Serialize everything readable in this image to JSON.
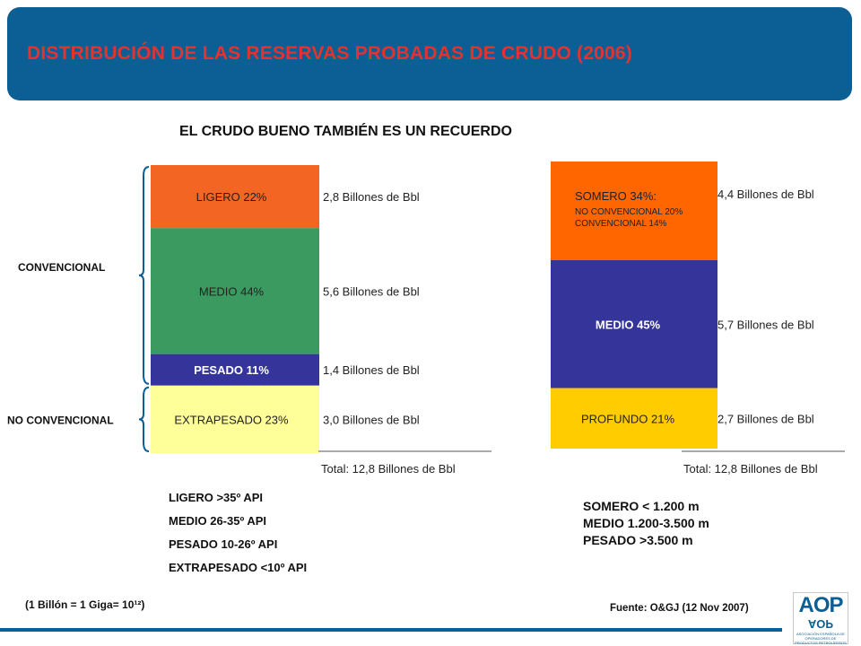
{
  "header": {
    "title": "DISTRIBUCIÓN DE LAS RESERVAS PROBADAS DE CRUDO (2006)"
  },
  "subtitle": "EL CRUDO BUENO TAMBIÉN ES UN RECUERDO",
  "chart_data": [
    {
      "type": "bar",
      "stacked": true,
      "unit": "Billones de Bbl",
      "series": [
        {
          "name": "LIGERO 22%",
          "value": 2.8,
          "value_label": "2,8",
          "color": "#f26522"
        },
        {
          "name": "MEDIO 44%",
          "value": 5.6,
          "value_label": "5,6",
          "color": "#3a9a5f"
        },
        {
          "name": "PESADO 11%",
          "value": 1.4,
          "value_label": "1,4",
          "color": "#34349b"
        },
        {
          "name": "EXTRAPESADO 23%",
          "value": 3.0,
          "value_label": "3,0",
          "color": "#ffff99"
        }
      ],
      "groups": [
        {
          "label": "CONVENCIONAL",
          "members": [
            "LIGERO 22%",
            "MEDIO 44%",
            "PESADO 11%"
          ]
        },
        {
          "label": "NO CONVENCIONAL",
          "members": [
            "EXTRAPESADO 23%"
          ]
        }
      ],
      "total_label": "Total: 12,8 Billones de Bbl"
    },
    {
      "type": "bar",
      "stacked": true,
      "unit": "Billones de Bbl",
      "series": [
        {
          "name": "SOMERO 34%:",
          "sub_labels": [
            "NO CONVENCIONAL 20%",
            "CONVENCIONAL 14%"
          ],
          "value": 4.4,
          "value_label": "4,4",
          "color": "#ff6600"
        },
        {
          "name": "MEDIO 45%",
          "value": 5.7,
          "value_label": "5,7",
          "color": "#34349b"
        },
        {
          "name": "PROFUNDO 21%",
          "value": 2.7,
          "value_label": "2,7",
          "color": "#ffcc00"
        }
      ],
      "total_label": "Total: 12,8 Billones de Bbl"
    }
  ],
  "legend_left": [
    "LIGERO >35º API",
    "MEDIO 26-35º API",
    "PESADO 10-26º API",
    "EXTRAPESADO <10º API"
  ],
  "legend_right": [
    "SOMERO < 1.200 m",
    "MEDIO 1.200-3.500 m",
    "PESADO >3.500 m"
  ],
  "note": "(1 Billón = 1 Giga= 10¹²)",
  "source": "Fuente: O&GJ (12 Nov 2007)",
  "logo": {
    "mark": "AOP",
    "sub": "ASOCIACIÓN ESPAÑOLA DE OPERADORES DE PRODUCTOS PETROLÍFEROS"
  }
}
